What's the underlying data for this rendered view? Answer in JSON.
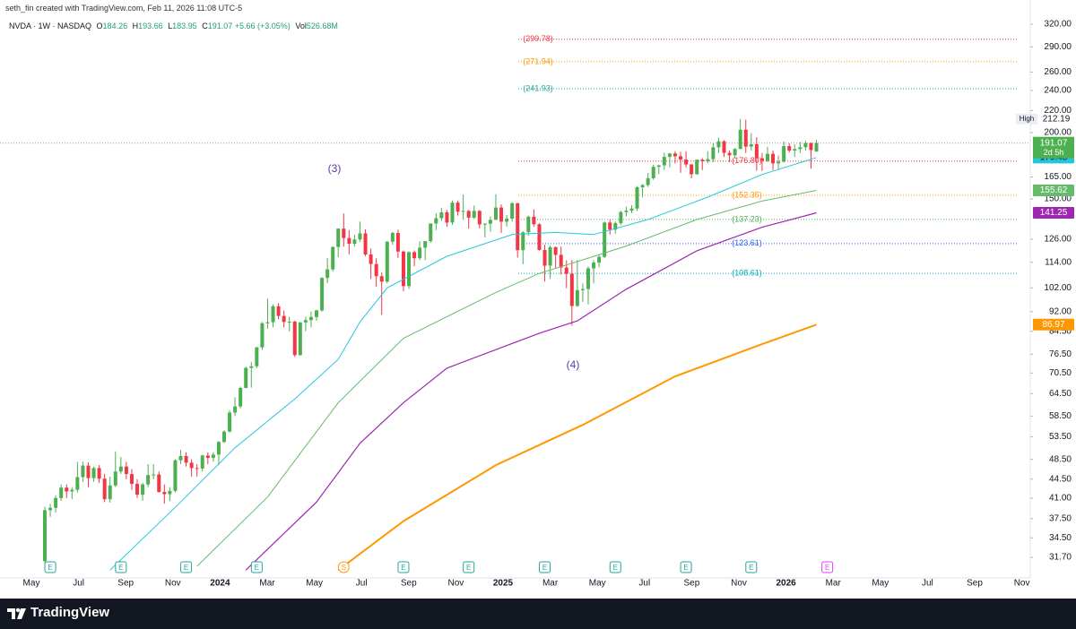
{
  "header": "seth_fin created with TradingView.com, Feb 11, 2026 11:08 UTC-5",
  "branding": "TradingView",
  "chart_data": {
    "type": "candlestick",
    "legend": {
      "symbol": "NVDA · 1W · NASDAQ",
      "items": [
        {
          "key": "O",
          "value": 184.26
        },
        {
          "key": "H",
          "value": 193.66
        },
        {
          "key": "L",
          "value": 183.95
        },
        {
          "key": "C",
          "value": 191.07
        }
      ],
      "change": "+5.66 (+3.05%)",
      "volume_key": "Vol",
      "volume": "526.68M"
    },
    "log_scale": true,
    "grid": false,
    "up_color": "#4caf50",
    "down_color": "#f23645",
    "ylim": [
      29,
      344.5
    ],
    "yticks": [
      {
        "value": 320,
        "label": "320.00"
      },
      {
        "value": 290,
        "label": "290.00"
      },
      {
        "value": 260,
        "label": "260.00"
      },
      {
        "value": 240,
        "label": "240.00"
      },
      {
        "value": 220,
        "label": "220.00"
      },
      {
        "value": 200,
        "label": "200.00"
      },
      {
        "value": 165,
        "label": "165.00"
      },
      {
        "value": 150,
        "label": "150.00"
      },
      {
        "value": 126,
        "label": "126.00"
      },
      {
        "value": 114,
        "label": "114.00"
      },
      {
        "value": 102,
        "label": "102.00"
      },
      {
        "value": 92,
        "label": "92.00"
      },
      {
        "value": 84.5,
        "label": "84.50"
      },
      {
        "value": 76.5,
        "label": "76.50"
      },
      {
        "value": 70.5,
        "label": "70.50"
      },
      {
        "value": 64.5,
        "label": "64.50"
      },
      {
        "value": 58.5,
        "label": "58.50"
      },
      {
        "value": 53.5,
        "label": "53.50"
      },
      {
        "value": 48.5,
        "label": "48.50"
      },
      {
        "value": 44.5,
        "label": "44.50"
      },
      {
        "value": 41,
        "label": "41.00"
      },
      {
        "value": 37.5,
        "label": "37.50"
      },
      {
        "value": 34.5,
        "label": "34.50"
      },
      {
        "value": 31.7,
        "label": "31.70"
      }
    ],
    "xticks": [
      "May",
      "Jul",
      "Sep",
      "Nov",
      "2024",
      "Mar",
      "May",
      "Jul",
      "Sep",
      "Nov",
      "2025",
      "Mar",
      "May",
      "Jul",
      "Sep",
      "Nov",
      "2026",
      "Mar",
      "May",
      "Jul",
      "Sep",
      "Nov"
    ],
    "ohlc": [
      [
        31.2,
        39.5,
        30.9,
        38.9
      ],
      [
        38.9,
        40.0,
        37.8,
        39.3
      ],
      [
        39.3,
        41.5,
        38.5,
        41.0
      ],
      [
        41.0,
        43.5,
        40.5,
        42.9
      ],
      [
        42.9,
        43.5,
        41.0,
        42.2
      ],
      [
        42.2,
        43.0,
        40.8,
        42.5
      ],
      [
        42.5,
        48.0,
        42.0,
        44.9
      ],
      [
        44.9,
        48.0,
        44.0,
        47.2
      ],
      [
        47.2,
        47.9,
        43.0,
        44.7
      ],
      [
        44.7,
        47.0,
        44.0,
        46.7
      ],
      [
        46.7,
        47.3,
        43.8,
        44.6
      ],
      [
        44.6,
        45.5,
        40.3,
        40.8
      ],
      [
        40.8,
        45.0,
        40.2,
        43.3
      ],
      [
        43.3,
        50.2,
        43.0,
        46.0
      ],
      [
        46.0,
        49.0,
        45.5,
        47.0
      ],
      [
        47.0,
        48.0,
        44.5,
        45.5
      ],
      [
        45.5,
        46.5,
        42.5,
        43.6
      ],
      [
        43.6,
        44.5,
        41.0,
        41.6
      ],
      [
        41.6,
        43.8,
        40.5,
        43.5
      ],
      [
        43.5,
        47.5,
        43.0,
        45.3
      ],
      [
        45.3,
        47.5,
        44.5,
        45.4
      ],
      [
        45.4,
        46.0,
        42.0,
        42.1
      ],
      [
        42.1,
        43.5,
        40.0,
        41.7
      ],
      [
        41.7,
        43.0,
        40.5,
        42.3
      ],
      [
        42.3,
        48.5,
        42.0,
        48.3
      ],
      [
        48.3,
        50.5,
        47.5,
        49.2
      ],
      [
        49.2,
        50.0,
        47.0,
        47.8
      ],
      [
        47.8,
        48.5,
        45.0,
        46.7
      ],
      [
        46.7,
        47.5,
        45.0,
        46.6
      ],
      [
        46.6,
        49.5,
        46.0,
        49.3
      ],
      [
        49.3,
        50.0,
        47.5,
        48.8
      ],
      [
        48.8,
        50.0,
        48.0,
        49.5
      ],
      [
        49.5,
        52.5,
        47.3,
        52.3
      ],
      [
        52.3,
        55.0,
        52.0,
        54.7
      ],
      [
        54.7,
        60.0,
        54.5,
        59.4
      ],
      [
        59.4,
        63.5,
        58.5,
        61.0
      ],
      [
        61.0,
        66.5,
        60.5,
        66.1
      ],
      [
        66.1,
        72.5,
        66.0,
        72.1
      ],
      [
        72.1,
        74.0,
        66.2,
        72.6
      ],
      [
        72.6,
        79.0,
        72.0,
        78.8
      ],
      [
        78.8,
        88.0,
        78.0,
        87.5
      ],
      [
        87.5,
        97.4,
        85.5,
        87.9
      ],
      [
        87.9,
        95.0,
        86.0,
        94.2
      ],
      [
        94.2,
        95.5,
        89.0,
        90.3
      ],
      [
        90.3,
        92.5,
        86.0,
        88.0
      ],
      [
        88.0,
        90.0,
        84.5,
        88.1
      ],
      [
        88.1,
        88.5,
        75.6,
        76.2
      ],
      [
        76.2,
        88.0,
        76.0,
        87.8
      ],
      [
        87.8,
        90.0,
        84.5,
        88.7
      ],
      [
        88.7,
        92.0,
        86.0,
        89.9
      ],
      [
        89.9,
        92.8,
        88.5,
        92.5
      ],
      [
        92.5,
        106.8,
        92.0,
        106.5
      ],
      [
        106.5,
        116.0,
        104.0,
        110.5
      ],
      [
        110.5,
        122.0,
        109.5,
        121.8
      ],
      [
        121.8,
        132.0,
        116.5,
        131.9
      ],
      [
        131.9,
        140.8,
        122.0,
        126.6
      ],
      [
        126.6,
        131.0,
        118.0,
        123.5
      ],
      [
        123.5,
        128.5,
        122.0,
        125.8
      ],
      [
        125.8,
        136.0,
        124.5,
        129.2
      ],
      [
        129.2,
        131.5,
        117.0,
        117.9
      ],
      [
        117.9,
        121.0,
        106.0,
        113.1
      ],
      [
        113.1,
        116.0,
        102.5,
        107.3
      ],
      [
        107.3,
        109.0,
        90.7,
        104.8
      ],
      [
        104.8,
        125.0,
        104.0,
        124.6
      ],
      [
        124.6,
        130.0,
        123.0,
        129.4
      ],
      [
        129.4,
        131.3,
        116.0,
        119.4
      ],
      [
        119.4,
        120.0,
        100.5,
        102.8
      ],
      [
        102.8,
        119.5,
        101.5,
        119.1
      ],
      [
        119.1,
        120.0,
        112.0,
        116.0
      ],
      [
        116.0,
        124.9,
        115.0,
        121.4
      ],
      [
        121.4,
        125.0,
        115.0,
        124.9
      ],
      [
        124.9,
        135.0,
        124.0,
        134.8
      ],
      [
        134.8,
        140.9,
        131.0,
        138.0
      ],
      [
        138.0,
        144.4,
        136.5,
        141.5
      ],
      [
        141.5,
        143.0,
        133.0,
        135.4
      ],
      [
        135.4,
        148.9,
        134.0,
        147.6
      ],
      [
        147.6,
        149.0,
        139.5,
        141.9
      ],
      [
        141.9,
        152.9,
        137.0,
        142.4
      ],
      [
        142.4,
        143.0,
        132.0,
        138.3
      ],
      [
        138.3,
        145.8,
        137.5,
        142.4
      ],
      [
        142.4,
        142.9,
        132.0,
        134.3
      ],
      [
        134.3,
        135.0,
        126.9,
        134.7
      ],
      [
        134.7,
        139.0,
        130.0,
        137.0
      ],
      [
        137.0,
        153.1,
        137.0,
        144.5
      ],
      [
        144.5,
        146.5,
        129.5,
        135.9
      ],
      [
        135.9,
        140.0,
        133.0,
        137.7
      ],
      [
        137.7,
        148.0,
        136.0,
        147.2
      ],
      [
        147.2,
        147.5,
        116.3,
        120.1
      ],
      [
        120.1,
        130.4,
        113.0,
        129.8
      ],
      [
        129.8,
        139.5,
        128.0,
        138.9
      ],
      [
        138.9,
        143.4,
        133.0,
        134.4
      ],
      [
        134.4,
        135.0,
        119.9,
        120.2
      ],
      [
        120.2,
        123.0,
        104.8,
        112.3
      ],
      [
        112.3,
        122.5,
        106.0,
        121.7
      ],
      [
        121.7,
        122.0,
        111.0,
        117.7
      ],
      [
        117.7,
        122.0,
        108.0,
        111.4
      ],
      [
        111.4,
        115.0,
        101.8,
        108.4
      ],
      [
        108.4,
        115.0,
        86.6,
        94.3
      ],
      [
        94.3,
        115.1,
        94.0,
        101.0
      ],
      [
        101.0,
        104.0,
        96.0,
        101.5
      ],
      [
        101.5,
        112.0,
        95.0,
        111.0
      ],
      [
        111.0,
        115.0,
        104.0,
        113.8
      ],
      [
        113.8,
        118.0,
        111.5,
        116.7
      ],
      [
        116.7,
        136.0,
        116.0,
        135.4
      ],
      [
        135.4,
        137.0,
        128.5,
        131.3
      ],
      [
        131.3,
        136.0,
        129.0,
        135.1
      ],
      [
        135.1,
        142.5,
        134.0,
        141.7
      ],
      [
        141.7,
        145.0,
        139.0,
        142.6
      ],
      [
        142.6,
        146.0,
        141.0,
        143.9
      ],
      [
        143.9,
        158.7,
        142.5,
        157.8
      ],
      [
        157.8,
        160.0,
        151.0,
        159.3
      ],
      [
        159.3,
        167.9,
        158.0,
        164.1
      ],
      [
        164.1,
        174.0,
        163.0,
        172.4
      ],
      [
        172.4,
        174.0,
        167.0,
        173.5
      ],
      [
        173.5,
        183.3,
        170.0,
        180.0
      ],
      [
        180.0,
        183.0,
        172.0,
        182.7
      ],
      [
        182.7,
        184.5,
        175.0,
        180.5
      ],
      [
        180.5,
        184.0,
        168.0,
        177.9
      ],
      [
        177.9,
        184.5,
        172.0,
        174.2
      ],
      [
        174.2,
        174.5,
        164.0,
        167.0
      ],
      [
        167.0,
        178.0,
        166.5,
        177.8
      ],
      [
        177.8,
        179.0,
        170.0,
        176.7
      ],
      [
        176.7,
        184.6,
        175.0,
        178.2
      ],
      [
        178.2,
        191.0,
        176.0,
        187.6
      ],
      [
        187.6,
        195.6,
        183.0,
        192.6
      ],
      [
        192.6,
        193.5,
        180.0,
        183.2
      ],
      [
        183.2,
        185.0,
        176.0,
        181.2
      ],
      [
        181.2,
        187.0,
        179.0,
        186.3
      ],
      [
        186.3,
        212.19,
        186.0,
        202.5
      ],
      [
        202.5,
        211.5,
        183.0,
        188.2
      ],
      [
        188.2,
        199.5,
        185.0,
        190.2
      ],
      [
        190.2,
        196.0,
        169.5,
        178.9
      ],
      [
        178.9,
        183.0,
        169.5,
        177.0
      ],
      [
        177.0,
        188.0,
        176.0,
        182.4
      ],
      [
        182.4,
        185.0,
        170.0,
        175.0
      ],
      [
        175.0,
        181.0,
        170.5,
        176.3
      ],
      [
        176.3,
        192.5,
        175.5,
        188.6
      ],
      [
        188.6,
        191.0,
        183.5,
        185.0
      ],
      [
        185.0,
        190.0,
        180.0,
        186.2
      ],
      [
        186.2,
        192.0,
        183.0,
        187.7
      ],
      [
        187.7,
        193.0,
        185.0,
        191.1
      ],
      [
        191.1,
        191.5,
        171.0,
        185.4
      ],
      [
        184.26,
        193.66,
        183.95,
        191.07
      ]
    ],
    "high_label": "High",
    "countdown": "2d 5h",
    "series": [
      {
        "color": "#26c6da",
        "width": 1,
        "x": [
          12,
          25,
          35,
          46,
          54,
          58,
          63,
          74,
          86,
          94,
          101,
          111,
          122,
          132,
          142
        ],
        "values": [
          30,
          40.3,
          51,
          63,
          74.8,
          88,
          102,
          117,
          128.5,
          129.7,
          128.5,
          137.2,
          151.2,
          166.7,
          179.48
        ]
      },
      {
        "color": "#66bb6a",
        "width": 1,
        "x": [
          28,
          41,
          54,
          66,
          83,
          91,
          99,
          107,
          120,
          132,
          142
        ],
        "values": [
          30.5,
          41.2,
          62,
          82,
          100,
          108.6,
          115.2,
          122.3,
          137.2,
          148.6,
          155.62
        ]
      },
      {
        "color": "#9c27b0",
        "width": 1.2,
        "x": [
          37,
          50,
          58,
          66,
          74,
          91,
          98,
          107,
          120,
          132,
          142
        ],
        "values": [
          30,
          40.3,
          52,
          62,
          72,
          83.8,
          88.4,
          101.4,
          119.8,
          132.7,
          141.25
        ]
      },
      {
        "color": "#ff9800",
        "width": 2,
        "x": [
          54,
          66,
          83,
          99,
          116,
          132,
          142
        ],
        "values": [
          30,
          37.1,
          47.3,
          56.3,
          69.5,
          79.9,
          86.97
        ]
      }
    ],
    "levels": [
      {
        "value": 299.78,
        "label": "(299.78)",
        "color": "#f23645"
      },
      {
        "value": 271.94,
        "label": "(271.94)",
        "color": "#ff9800"
      },
      {
        "value": 241.93,
        "label": "(241.93)",
        "color": "#26a69a"
      },
      {
        "value": 176.8,
        "label": "(176.80)",
        "color": "#f23645"
      },
      {
        "value": 152.35,
        "label": "(152.35)",
        "color": "#ff9800"
      },
      {
        "value": 137.23,
        "label": "(137.23)",
        "color": "#4caf50"
      },
      {
        "value": 123.61,
        "label": "(123.61)",
        "color": "#2962ff"
      },
      {
        "value": 108.61,
        "label": "(108.61)",
        "color": "#00acc1"
      }
    ],
    "annotations": [
      {
        "text": "(3)",
        "color": "#5e35b1"
      },
      {
        "text": "(4)",
        "color": "#5e35b1"
      }
    ],
    "events": [
      {
        "label": "E",
        "x": 1,
        "color": "#26a69a"
      },
      {
        "label": "E",
        "x": 14,
        "color": "#26a69a"
      },
      {
        "label": "E",
        "x": 26,
        "color": "#26a69a"
      },
      {
        "label": "E",
        "x": 39,
        "color": "#26a69a"
      },
      {
        "label": "S",
        "x": 55,
        "color": "#ff9800"
      },
      {
        "label": "E",
        "x": 66,
        "color": "#26a69a"
      },
      {
        "label": "E",
        "x": 78,
        "color": "#26a69a"
      },
      {
        "label": "E",
        "x": 92,
        "color": "#26a69a"
      },
      {
        "label": "E",
        "x": 105,
        "color": "#26a69a"
      },
      {
        "label": "E",
        "x": 118,
        "color": "#26a69a"
      },
      {
        "label": "E",
        "x": 130,
        "color": "#26a69a"
      },
      {
        "label": "E",
        "x": 144,
        "color": "#e040fb"
      }
    ]
  }
}
